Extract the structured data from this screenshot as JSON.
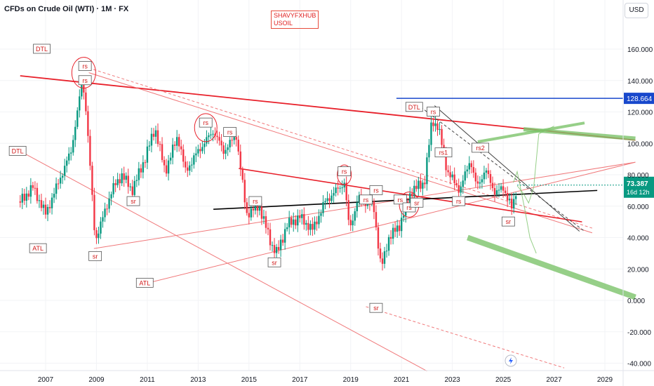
{
  "header": {
    "title": "CFDs on Crude Oil (WTI) · 1M · FX",
    "currency": "USD"
  },
  "watermark": {
    "line1": "SHAVYFXHUB",
    "line2": "USOIL"
  },
  "colors": {
    "bull": "#089981",
    "bear": "#f23645",
    "resistance": "#e8202a",
    "support_line": "#f0787a",
    "pivot": "#000000",
    "hline": "#1848cc",
    "projection": "#7cc36a",
    "price_tag": "#089981"
  },
  "chart_data": {
    "type": "candlestick",
    "title": "CFDs on Crude Oil (WTI) · 1M · FX",
    "x_axis": {
      "ticks": [
        "2007",
        "2009",
        "2011",
        "2013",
        "2015",
        "2017",
        "2019",
        "2021",
        "2023",
        "2025",
        "2027",
        "2029"
      ],
      "range": [
        2006.0,
        2030.2
      ]
    },
    "y_axis": {
      "ticks": [
        "-40.000",
        "-20.000",
        "0.000",
        "20.000",
        "40.000",
        "60.000",
        "80.000",
        "100.000",
        "120.000",
        "140.000",
        "160.000"
      ],
      "range": [
        -45,
        180
      ],
      "position": "right"
    },
    "ohlc_monthly_keypoints": [
      {
        "t": 2006.0,
        "v": 63
      },
      {
        "t": 2006.5,
        "v": 72
      },
      {
        "t": 2007.0,
        "v": 55
      },
      {
        "t": 2007.5,
        "v": 75
      },
      {
        "t": 2008.0,
        "v": 95
      },
      {
        "t": 2008.45,
        "v": 140
      },
      {
        "t": 2008.6,
        "v": 120
      },
      {
        "t": 2008.95,
        "v": 38
      },
      {
        "t": 2009.2,
        "v": 50
      },
      {
        "t": 2009.6,
        "v": 70
      },
      {
        "t": 2010.0,
        "v": 80
      },
      {
        "t": 2010.4,
        "v": 70
      },
      {
        "t": 2010.9,
        "v": 90
      },
      {
        "t": 2011.3,
        "v": 110
      },
      {
        "t": 2011.7,
        "v": 82
      },
      {
        "t": 2012.2,
        "v": 105
      },
      {
        "t": 2012.5,
        "v": 82
      },
      {
        "t": 2013.0,
        "v": 95
      },
      {
        "t": 2013.6,
        "v": 108
      },
      {
        "t": 2014.0,
        "v": 95
      },
      {
        "t": 2014.5,
        "v": 105
      },
      {
        "t": 2014.9,
        "v": 55
      },
      {
        "t": 2015.4,
        "v": 60
      },
      {
        "t": 2015.9,
        "v": 35
      },
      {
        "t": 2016.1,
        "v": 30
      },
      {
        "t": 2016.5,
        "v": 48
      },
      {
        "t": 2017.0,
        "v": 53
      },
      {
        "t": 2017.5,
        "v": 45
      },
      {
        "t": 2018.0,
        "v": 63
      },
      {
        "t": 2018.75,
        "v": 75
      },
      {
        "t": 2018.95,
        "v": 45
      },
      {
        "t": 2019.3,
        "v": 65
      },
      {
        "t": 2019.9,
        "v": 60
      },
      {
        "t": 2020.2,
        "v": 20
      },
      {
        "t": 2020.5,
        "v": 40
      },
      {
        "t": 2020.9,
        "v": 47
      },
      {
        "t": 2021.4,
        "v": 70
      },
      {
        "t": 2021.9,
        "v": 75
      },
      {
        "t": 2022.2,
        "v": 115
      },
      {
        "t": 2022.45,
        "v": 110
      },
      {
        "t": 2022.8,
        "v": 82
      },
      {
        "t": 2023.3,
        "v": 70
      },
      {
        "t": 2023.7,
        "v": 90
      },
      {
        "t": 2023.95,
        "v": 72
      },
      {
        "t": 2024.3,
        "v": 83
      },
      {
        "t": 2024.7,
        "v": 68
      },
      {
        "t": 2025.0,
        "v": 72
      },
      {
        "t": 2025.35,
        "v": 58
      },
      {
        "t": 2025.55,
        "v": 73.4
      }
    ],
    "horizontal_level": {
      "label": "128.664",
      "value": 128.664
    },
    "last_price": {
      "label": "73.387",
      "countdown": "16d 12h",
      "value": 73.387
    },
    "annotations": [
      {
        "text": "DTL",
        "t": 2006.85,
        "v": 160
      },
      {
        "text": "rs",
        "t": 2008.55,
        "v": 149
      },
      {
        "text": "rs",
        "t": 2008.55,
        "v": 140
      },
      {
        "text": "DTL",
        "t": 2005.9,
        "v": 95
      },
      {
        "text": "ATL",
        "t": 2006.7,
        "v": 33
      },
      {
        "text": "sr",
        "t": 2008.95,
        "v": 28
      },
      {
        "text": "sr",
        "t": 2010.45,
        "v": 63
      },
      {
        "text": "ATL",
        "t": 2010.9,
        "v": 11
      },
      {
        "text": "rs",
        "t": 2013.3,
        "v": 113
      },
      {
        "text": "rs",
        "t": 2014.25,
        "v": 107
      },
      {
        "text": "rs",
        "t": 2015.25,
        "v": 63
      },
      {
        "text": "sr",
        "t": 2016.0,
        "v": 24
      },
      {
        "text": "rs",
        "t": 2018.75,
        "v": 82
      },
      {
        "text": "rs",
        "t": 2020.0,
        "v": 70
      },
      {
        "text": "rs",
        "t": 2020.95,
        "v": 64
      },
      {
        "text": "rs",
        "t": 2019.6,
        "v": 64
      },
      {
        "text": "sr",
        "t": 2020.0,
        "v": -5
      },
      {
        "text": "rs",
        "t": 2021.3,
        "v": 59
      },
      {
        "text": "sr",
        "t": 2021.6,
        "v": 62
      },
      {
        "text": "DTL",
        "t": 2021.5,
        "v": 123
      },
      {
        "text": "rs",
        "t": 2022.25,
        "v": 120
      },
      {
        "text": "rs1",
        "t": 2022.65,
        "v": 94
      },
      {
        "text": "rs",
        "t": 2023.25,
        "v": 63
      },
      {
        "text": "rs2",
        "t": 2024.1,
        "v": 97
      },
      {
        "text": "sr",
        "t": 2025.2,
        "v": 50
      }
    ]
  }
}
